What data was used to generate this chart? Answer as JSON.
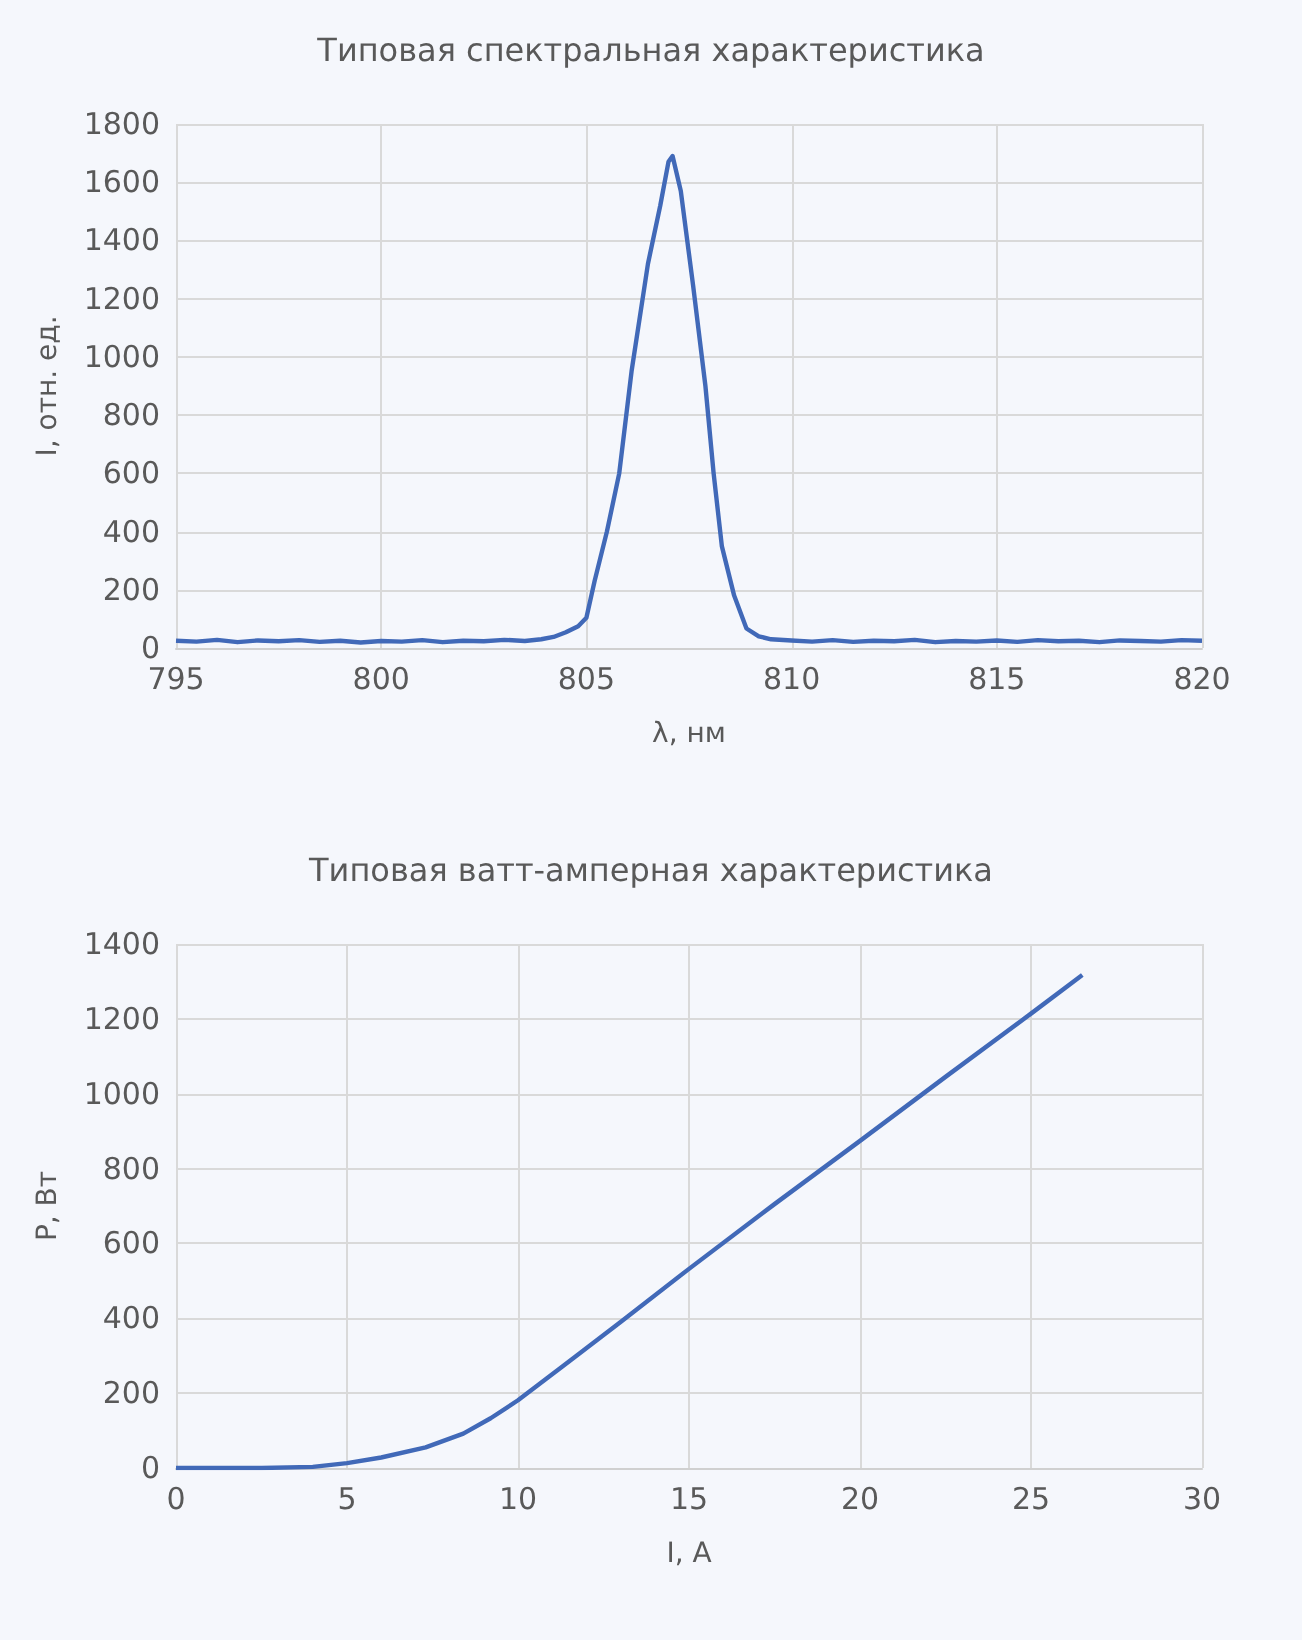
{
  "chart_data": [
    {
      "type": "line",
      "title": "Типовая спектральная характеристика",
      "xlabel": "λ, нм",
      "ylabel": "I, отн. ед.",
      "xlim": [
        795,
        820
      ],
      "ylim": [
        0,
        1800
      ],
      "xticks": [
        795,
        800,
        805,
        810,
        815,
        820
      ],
      "yticks": [
        0,
        200,
        400,
        600,
        800,
        1000,
        1200,
        1400,
        1600,
        1800
      ],
      "grid": true,
      "x": [
        795,
        795.5,
        796,
        796.5,
        797,
        797.5,
        798,
        798.5,
        799,
        799.5,
        800,
        800.5,
        801,
        801.5,
        802,
        802.5,
        803,
        803.5,
        803.9,
        804.2,
        804.5,
        804.8,
        805,
        805.2,
        805.5,
        805.8,
        806.1,
        806.5,
        806.8,
        807,
        807.1,
        807.3,
        807.6,
        807.9,
        808.1,
        808.3,
        808.6,
        808.9,
        809.2,
        809.5,
        810,
        810.5,
        811,
        811.5,
        812,
        812.5,
        813,
        813.5,
        814,
        814.5,
        815,
        815.5,
        816,
        816.5,
        817,
        817.5,
        818,
        818.5,
        819,
        819.5,
        820
      ],
      "series": [
        {
          "color": "#4169b8",
          "values": [
            25,
            22,
            28,
            20,
            26,
            23,
            27,
            21,
            25,
            19,
            24,
            22,
            27,
            20,
            25,
            23,
            28,
            24,
            30,
            38,
            54,
            75,
            104,
            230,
            400,
            600,
            950,
            1320,
            1520,
            1670,
            1690,
            1570,
            1245,
            900,
            600,
            350,
            180,
            67,
            40,
            30,
            26,
            22,
            27,
            21,
            25,
            23,
            28,
            20,
            24,
            22,
            26,
            21,
            27,
            23,
            25,
            20,
            26,
            24,
            22,
            27,
            25
          ]
        }
      ]
    },
    {
      "type": "line",
      "title": "Типовая ватт-амперная характеристика",
      "xlabel": "I, А",
      "ylabel": "P, Вт",
      "xlim": [
        0,
        30
      ],
      "ylim": [
        0,
        1400
      ],
      "xticks": [
        0,
        5,
        10,
        15,
        20,
        25,
        30
      ],
      "yticks": [
        0,
        200,
        400,
        600,
        800,
        1000,
        1200,
        1400
      ],
      "grid": true,
      "x": [
        0,
        1,
        2.5,
        4,
        5,
        6,
        7.3,
        8.4,
        9.2,
        10,
        11.5,
        13,
        15,
        17.5,
        20,
        22.5,
        25,
        26.5
      ],
      "series": [
        {
          "color": "#4169b8",
          "values": [
            0,
            0,
            0,
            3,
            13,
            28,
            55,
            92,
            133,
            181,
            285,
            390,
            532,
            705,
            874,
            1045,
            1214,
            1317
          ]
        }
      ]
    }
  ]
}
